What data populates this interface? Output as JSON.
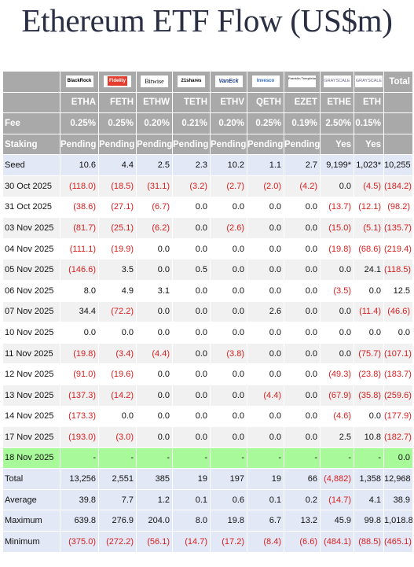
{
  "title": "Ethereum ETF Flow (US$m)",
  "colors": {
    "header_bg": "#a9a9a9",
    "seed_bg": "#e3e8f6",
    "highlight_bg": "#a8f99a",
    "negative_text": "#d82020"
  },
  "logos": [
    {
      "name": "BlackRock",
      "icon": "blackrock-logo"
    },
    {
      "name": "Fidelity",
      "icon": "fidelity-logo"
    },
    {
      "name": "Bitwise",
      "icon": "bitwise-logo"
    },
    {
      "name": "21shares",
      "icon": "21shares-logo"
    },
    {
      "name": "VanEck",
      "icon": "vaneck-logo"
    },
    {
      "name": "Invesco",
      "icon": "invesco-logo"
    },
    {
      "name": "Franklin Templeton",
      "icon": "franklin-templeton-logo"
    },
    {
      "name": "GRAYSCALE",
      "icon": "grayscale-logo"
    },
    {
      "name": "GRAYSCALE",
      "icon": "grayscale-logo"
    }
  ],
  "total_header": "Total",
  "tickers": [
    "ETHA",
    "FETH",
    "ETHW",
    "TETH",
    "ETHV",
    "QETH",
    "EZET",
    "ETHE",
    "ETH"
  ],
  "fee": {
    "label": "Fee",
    "values": [
      "0.25%",
      "0.25%",
      "0.20%",
      "0.21%",
      "0.20%",
      "0.25%",
      "0.19%",
      "2.50%",
      "0.15%"
    ]
  },
  "staking": {
    "label": "Staking",
    "values": [
      "Pending",
      "Pending",
      "Pending",
      "Pending",
      "Pending",
      "Pending",
      "Pending",
      "Yes",
      "Yes"
    ]
  },
  "chart_data": {
    "type": "table",
    "title": "Ethereum ETF Flow (US$m)",
    "columns": [
      "ETHA",
      "FETH",
      "ETHW",
      "TETH",
      "ETHV",
      "QETH",
      "EZET",
      "ETHE",
      "ETH",
      "Total"
    ],
    "rows": [
      {
        "label": "Seed",
        "values": [
          "10.6",
          "4.4",
          "2.5",
          "2.3",
          "10.2",
          "1.1",
          "2.7",
          "9,199*",
          "1,023*",
          "10,255"
        ],
        "style": "seed"
      },
      {
        "label": "30 Oct 2025",
        "values": [
          "(118.0)",
          "(18.5)",
          "(31.1)",
          "(3.2)",
          "(2.7)",
          "(2.0)",
          "(4.2)",
          "0.0",
          "(4.5)",
          "(184.2)"
        ],
        "style": "even"
      },
      {
        "label": "31 Oct 2025",
        "values": [
          "(38.6)",
          "(27.1)",
          "(6.7)",
          "0.0",
          "0.0",
          "0.0",
          "0.0",
          "(13.7)",
          "(12.1)",
          "(98.2)"
        ],
        "style": "odd"
      },
      {
        "label": "03 Nov 2025",
        "values": [
          "(81.7)",
          "(25.1)",
          "(6.2)",
          "0.0",
          "(2.6)",
          "0.0",
          "0.0",
          "(15.0)",
          "(5.1)",
          "(135.7)"
        ],
        "style": "even"
      },
      {
        "label": "04 Nov 2025",
        "values": [
          "(111.1)",
          "(19.9)",
          "0.0",
          "0.0",
          "0.0",
          "0.0",
          "0.0",
          "(19.8)",
          "(68.6)",
          "(219.4)"
        ],
        "style": "odd"
      },
      {
        "label": "05 Nov 2025",
        "values": [
          "(146.6)",
          "3.5",
          "0.0",
          "0.5",
          "0.0",
          "0.0",
          "0.0",
          "0.0",
          "24.1",
          "(118.5)"
        ],
        "style": "even"
      },
      {
        "label": "06 Nov 2025",
        "values": [
          "8.0",
          "4.9",
          "3.1",
          "0.0",
          "0.0",
          "0.0",
          "0.0",
          "(3.5)",
          "0.0",
          "12.5"
        ],
        "style": "odd"
      },
      {
        "label": "07 Nov 2025",
        "values": [
          "34.4",
          "(72.2)",
          "0.0",
          "0.0",
          "0.0",
          "2.6",
          "0.0",
          "0.0",
          "(11.4)",
          "(46.6)"
        ],
        "style": "even"
      },
      {
        "label": "10 Nov 2025",
        "values": [
          "0.0",
          "0.0",
          "0.0",
          "0.0",
          "0.0",
          "0.0",
          "0.0",
          "0.0",
          "0.0",
          "0.0"
        ],
        "style": "odd"
      },
      {
        "label": "11 Nov 2025",
        "values": [
          "(19.8)",
          "(3.4)",
          "(4.4)",
          "0.0",
          "(3.8)",
          "0.0",
          "0.0",
          "0.0",
          "(75.7)",
          "(107.1)"
        ],
        "style": "even"
      },
      {
        "label": "12 Nov 2025",
        "values": [
          "(91.0)",
          "(19.6)",
          "0.0",
          "0.0",
          "0.0",
          "0.0",
          "0.0",
          "(49.3)",
          "(23.8)",
          "(183.7)"
        ],
        "style": "odd"
      },
      {
        "label": "13 Nov 2025",
        "values": [
          "(137.3)",
          "(14.2)",
          "0.0",
          "0.0",
          "0.0",
          "(4.4)",
          "0.0",
          "(67.9)",
          "(35.8)",
          "(259.6)"
        ],
        "style": "even"
      },
      {
        "label": "14 Nov 2025",
        "values": [
          "(173.3)",
          "0.0",
          "0.0",
          "0.0",
          "0.0",
          "0.0",
          "0.0",
          "(4.6)",
          "0.0",
          "(177.9)"
        ],
        "style": "odd"
      },
      {
        "label": "17 Nov 2025",
        "values": [
          "(193.0)",
          "(3.0)",
          "0.0",
          "0.0",
          "0.0",
          "0.0",
          "0.0",
          "2.5",
          "10.8",
          "(182.7)"
        ],
        "style": "even"
      },
      {
        "label": "18 Nov 2025",
        "values": [
          "-",
          "-",
          "-",
          "-",
          "-",
          "-",
          "-",
          "-",
          "-",
          "0.0"
        ],
        "style": "green"
      },
      {
        "label": "Total",
        "values": [
          "13,256",
          "2,551",
          "385",
          "19",
          "197",
          "19",
          "66",
          "(4,882)",
          "1,358",
          "12,968"
        ],
        "style": "summary"
      },
      {
        "label": "Average",
        "values": [
          "39.8",
          "7.7",
          "1.2",
          "0.1",
          "0.6",
          "0.1",
          "0.2",
          "(14.7)",
          "4.1",
          "38.9"
        ],
        "style": "summary"
      },
      {
        "label": "Maximum",
        "values": [
          "639.8",
          "276.9",
          "204.0",
          "8.0",
          "19.8",
          "6.7",
          "13.2",
          "45.9",
          "99.8",
          "1,018.8"
        ],
        "style": "summary"
      },
      {
        "label": "Minimum",
        "values": [
          "(375.0)",
          "(272.2)",
          "(56.1)",
          "(14.7)",
          "(17.2)",
          "(8.4)",
          "(6.6)",
          "(484.1)",
          "(88.5)",
          "(465.1)"
        ],
        "style": "summary"
      }
    ]
  }
}
